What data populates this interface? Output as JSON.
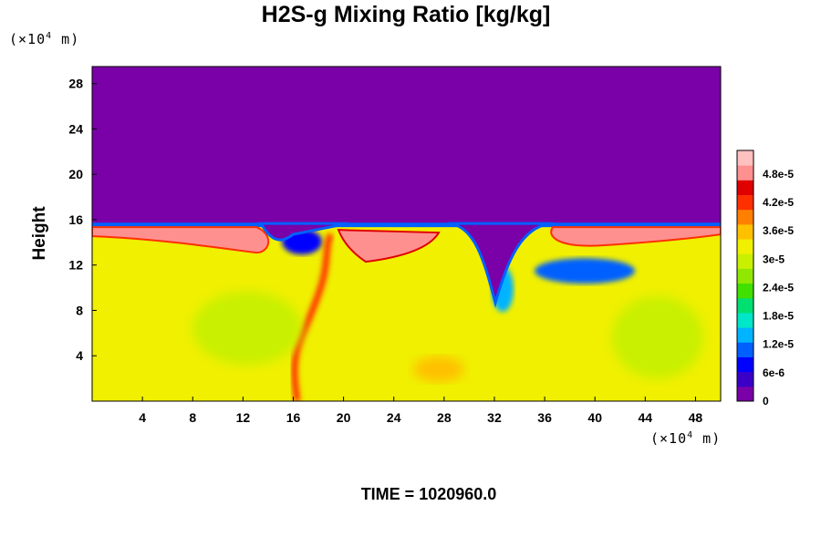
{
  "chart_data": {
    "type": "heatmap",
    "title": "H2S-g Mixing Ratio [kg/kg]",
    "xlabel": "",
    "ylabel": "Height",
    "x_unit": "(×10",
    "x_unit_exp": "4",
    "x_unit_tail": " m)",
    "y_unit": "(×10",
    "y_unit_exp": "4",
    "y_unit_tail": " m)",
    "xlim": [
      0,
      50
    ],
    "ylim": [
      0,
      29.5
    ],
    "x_ticks": [
      "4",
      "8",
      "12",
      "16",
      "20",
      "24",
      "28",
      "32",
      "36",
      "40",
      "44",
      "48"
    ],
    "y_ticks": [
      "4",
      "8",
      "12",
      "16",
      "20",
      "24",
      "28"
    ],
    "colorbar": {
      "range": [
        0,
        5.3e-05
      ],
      "tick_labels": [
        "0",
        "6e-6",
        "1.2e-5",
        "1.8e-5",
        "2.4e-5",
        "3e-5",
        "3.6e-5",
        "4.2e-5",
        "4.8e-5"
      ],
      "tick_values": [
        0,
        6e-06,
        1.2e-05,
        1.8e-05,
        2.4e-05,
        3e-05,
        3.6e-05,
        4.2e-05,
        4.8e-05
      ],
      "colors": [
        "#7a00a8",
        "#3a00c8",
        "#0000ff",
        "#0060ff",
        "#00b4ff",
        "#00e6c8",
        "#00e070",
        "#40e000",
        "#90e800",
        "#c8f000",
        "#f0f000",
        "#ffc000",
        "#ff8000",
        "#ff3000",
        "#e00000",
        "#ff9090",
        "#ffc0c0"
      ]
    },
    "field_summary": {
      "upper_region_value": 0,
      "interface_height": 15.5,
      "lower_region_typical_value": 3.2e-05,
      "interface_band_value": 5e-05
    }
  },
  "time_label": "TIME = 1020960.0"
}
